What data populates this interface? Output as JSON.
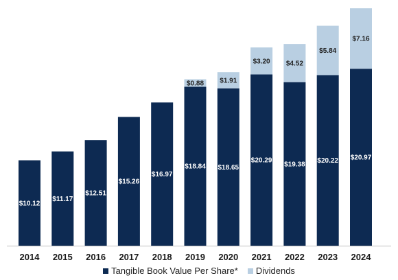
{
  "chart_data": {
    "type": "bar",
    "stacked": true,
    "categories": [
      "2014",
      "2015",
      "2016",
      "2017",
      "2018",
      "2019",
      "2020",
      "2021",
      "2022",
      "2023",
      "2024"
    ],
    "series": [
      {
        "name": "Tangible Book Value Per Share*",
        "color": "#0d2a52",
        "label_color": "#ffffff",
        "values": [
          10.12,
          11.17,
          12.51,
          15.26,
          16.97,
          18.84,
          18.65,
          20.29,
          19.38,
          20.22,
          20.97
        ],
        "labels": [
          "$10.12",
          "$11.17",
          "$12.51",
          "$15.26",
          "$16.97",
          "$18.84",
          "$18.65",
          "$20.29",
          "$19.38",
          "$20.22",
          "$20.97"
        ]
      },
      {
        "name": "Dividends",
        "color": "#b9cfe2",
        "label_color": "#222222",
        "values": [
          null,
          null,
          null,
          null,
          null,
          0.88,
          1.91,
          3.2,
          4.52,
          5.84,
          7.16
        ],
        "labels": [
          "",
          "",
          "",
          "",
          "",
          "$0.88",
          "$1.91",
          "$3.20",
          "$4.52",
          "$5.84",
          "$7.16"
        ]
      }
    ],
    "ylim": [
      0,
      28.3
    ],
    "grid": false,
    "legend_position": "bottom-center"
  }
}
